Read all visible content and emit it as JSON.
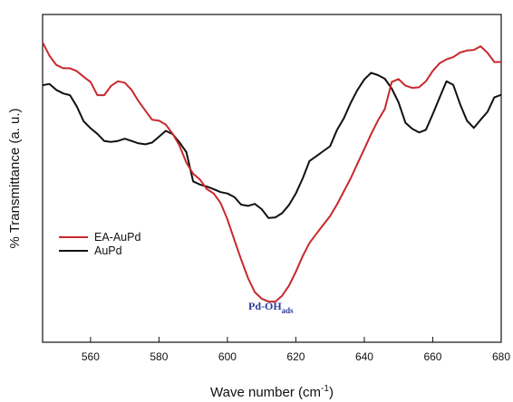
{
  "chart_data": {
    "type": "line",
    "title": "",
    "xlabel": "Wave number (cm",
    "xlabel_sup": "-1",
    "xlabel_end": ")",
    "ylabel": "% Transmittance (a. u.)",
    "xlim": [
      546,
      680
    ],
    "ylim": [
      0,
      100
    ],
    "y_ticks_labeled": false,
    "x_ticks": [
      560,
      580,
      600,
      620,
      640,
      660,
      680
    ],
    "x_tick_labels": [
      "560",
      "580",
      "600",
      "620",
      "640",
      "660",
      "680"
    ],
    "grid": false,
    "legend_position": "center-left",
    "annotations": [
      {
        "text": "Pd-OH",
        "subscript": "ads",
        "x": 613,
        "y": 10,
        "color": "#2b3a9a"
      }
    ],
    "series": [
      {
        "name": "EA-AuPd",
        "color": "#c8282d",
        "x": [
          546,
          548,
          550,
          552,
          554,
          556,
          558,
          560,
          562,
          564,
          566,
          568,
          570,
          572,
          574,
          576,
          578,
          580,
          582,
          584,
          586,
          588,
          590,
          592,
          594,
          596,
          598,
          600,
          602,
          604,
          606,
          608,
          610,
          612,
          614,
          616,
          618,
          620,
          622,
          624,
          626,
          628,
          630,
          632,
          634,
          636,
          638,
          640,
          642,
          644,
          646,
          648,
          650,
          652,
          654,
          656,
          658,
          660,
          662,
          664,
          666,
          668,
          670,
          672,
          674,
          676,
          678,
          680
        ],
        "values": [
          91.5,
          87.4,
          84.6,
          83.6,
          83.6,
          82.7,
          81.0,
          79.4,
          75.4,
          75.4,
          78.2,
          79.6,
          79.2,
          77.0,
          73.6,
          70.7,
          67.9,
          67.6,
          66.4,
          63.6,
          60.0,
          54.8,
          51.4,
          49.6,
          46.7,
          45.4,
          42.5,
          37.5,
          31.3,
          25.3,
          19.6,
          15.3,
          13.3,
          12.4,
          12.4,
          14.2,
          17.3,
          21.5,
          26.3,
          30.3,
          33.1,
          35.8,
          38.5,
          42.0,
          46.0,
          50.0,
          54.5,
          59.0,
          63.5,
          67.7,
          71.2,
          79.4,
          80.3,
          78.3,
          77.6,
          77.8,
          79.6,
          82.8,
          85.1,
          86.3,
          87.0,
          88.4,
          89.0,
          89.2,
          90.3,
          88.3,
          85.5,
          85.5
        ]
      },
      {
        "name": "AuPd",
        "color": "#111111",
        "x": [
          546,
          548,
          550,
          552,
          554,
          556,
          558,
          560,
          562,
          564,
          566,
          568,
          570,
          572,
          574,
          576,
          578,
          580,
          582,
          584,
          586,
          588,
          590,
          592,
          594,
          596,
          598,
          600,
          602,
          604,
          606,
          608,
          610,
          612,
          614,
          616,
          618,
          620,
          622,
          624,
          626,
          628,
          630,
          632,
          634,
          636,
          638,
          640,
          642,
          644,
          646,
          648,
          650,
          652,
          654,
          656,
          658,
          660,
          662,
          664,
          666,
          668,
          670,
          672,
          674,
          676,
          678,
          680
        ],
        "values": [
          78.4,
          78.8,
          77.0,
          75.9,
          75.4,
          71.9,
          67.4,
          65.3,
          63.6,
          61.4,
          61.1,
          61.4,
          62.1,
          61.4,
          60.7,
          60.4,
          60.9,
          62.7,
          64.5,
          63.5,
          61.0,
          58.0,
          49.1,
          48.1,
          47.5,
          46.7,
          45.8,
          45.4,
          44.3,
          42.0,
          41.6,
          42.2,
          40.6,
          37.9,
          38.1,
          39.4,
          41.9,
          45.4,
          50.0,
          55.3,
          56.8,
          58.3,
          59.8,
          64.7,
          68.3,
          73.0,
          77.0,
          80.2,
          82.2,
          81.5,
          80.4,
          77.4,
          73.2,
          67.0,
          65.1,
          64.0,
          64.8,
          69.6,
          74.6,
          79.6,
          78.5,
          72.6,
          67.6,
          65.4,
          67.9,
          70.3,
          74.7,
          75.5
        ]
      }
    ]
  }
}
